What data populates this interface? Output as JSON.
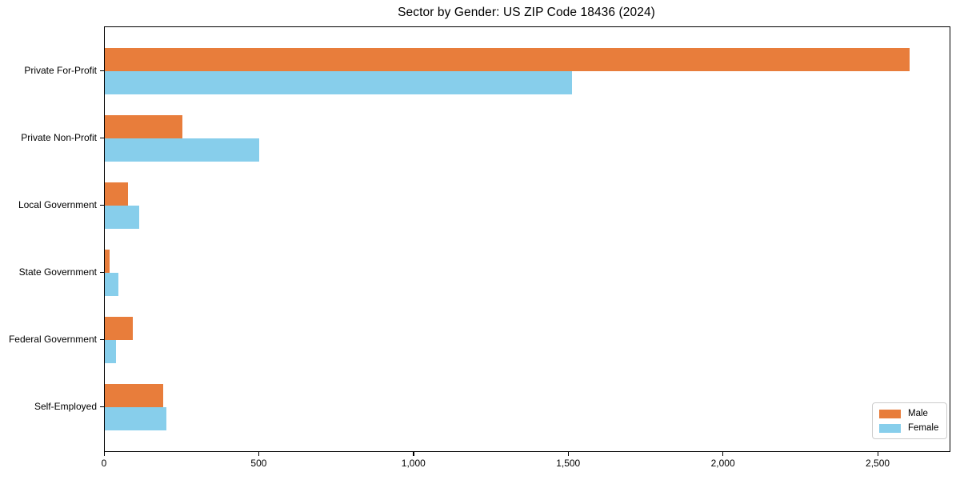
{
  "chart_data": {
    "type": "bar",
    "orientation": "horizontal",
    "title": "Sector by Gender: US ZIP Code 18436 (2024)",
    "categories": [
      "Private For-Profit",
      "Private Non-Profit",
      "Local Government",
      "State Government",
      "Federal Government",
      "Self-Employed"
    ],
    "series": [
      {
        "name": "Male",
        "color": "#E87D3B",
        "values": [
          2600,
          250,
          75,
          15,
          90,
          190
        ]
      },
      {
        "name": "Female",
        "color": "#87CEEB",
        "values": [
          1510,
          500,
          110,
          45,
          35,
          200
        ]
      }
    ],
    "xlabel": "",
    "ylabel": "",
    "xlim": [
      0,
      2730
    ],
    "x_ticks": [
      {
        "value": 0,
        "label": "0"
      },
      {
        "value": 500,
        "label": "500"
      },
      {
        "value": 1000,
        "label": "1,000"
      },
      {
        "value": 1500,
        "label": "1,500"
      },
      {
        "value": 2000,
        "label": "2,000"
      },
      {
        "value": 2500,
        "label": "2,500"
      }
    ],
    "grid": false,
    "legend": {
      "position": "lower right",
      "entries": [
        "Male",
        "Female"
      ]
    }
  }
}
